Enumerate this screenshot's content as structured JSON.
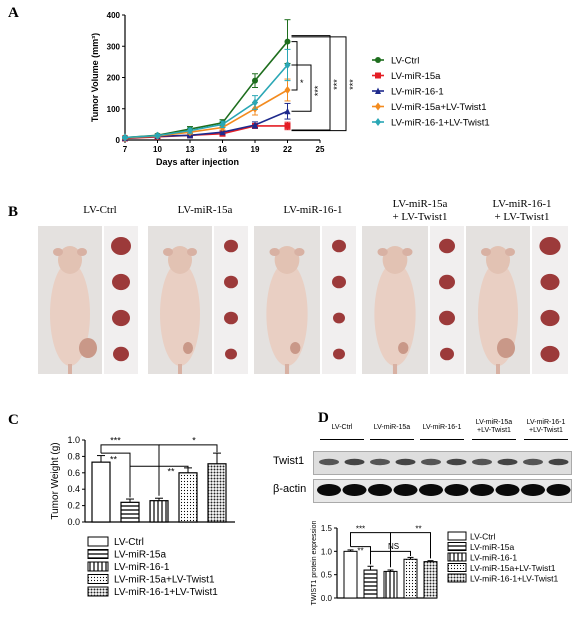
{
  "panels": {
    "a": "A",
    "b": "B",
    "c": "C",
    "d": "D"
  },
  "chart_a": {
    "type": "line",
    "xlabel": "Days after injection",
    "ylabel": "Tumor Volume (mm³)",
    "x_ticks": [
      7,
      10,
      13,
      16,
      19,
      22,
      25
    ],
    "y_ticks": [
      0,
      100,
      200,
      300,
      400
    ],
    "xlim": [
      7,
      25
    ],
    "ylim": [
      0,
      400
    ],
    "x": [
      7,
      10,
      13,
      16,
      19,
      22
    ],
    "series": [
      {
        "name": "LV-Ctrl",
        "color": "#1e6e1e",
        "marker": "circle",
        "values": [
          8,
          15,
          35,
          55,
          190,
          315
        ],
        "err": [
          3,
          4,
          8,
          10,
          22,
          70
        ]
      },
      {
        "name": "LV-miR-15a",
        "color": "#e41e25",
        "marker": "square",
        "values": [
          5,
          10,
          15,
          20,
          45,
          45
        ],
        "err": [
          2,
          3,
          5,
          5,
          8,
          12
        ]
      },
      {
        "name": "LV-miR-16-1",
        "color": "#1e2a8c",
        "marker": "triangle",
        "values": [
          6,
          12,
          15,
          25,
          48,
          92
        ],
        "err": [
          2,
          3,
          4,
          6,
          10,
          25
        ]
      },
      {
        "name": "LV-miR-15a+LV-Twist1",
        "color": "#f38b1f",
        "marker": "diamond",
        "values": [
          7,
          13,
          25,
          40,
          100,
          160
        ],
        "err": [
          3,
          4,
          6,
          8,
          20,
          35
        ]
      },
      {
        "name": "LV-miR-16-1+LV-Twist1",
        "color": "#2aa7b5",
        "marker": "diamond",
        "values": [
          8,
          14,
          30,
          50,
          120,
          240
        ],
        "err": [
          3,
          4,
          8,
          10,
          22,
          50
        ]
      }
    ],
    "sig": [
      "*",
      "***",
      "***",
      "***"
    ]
  },
  "photos": {
    "labels": [
      "LV-Ctrl",
      "LV-miR-15a",
      "LV-miR-16-1",
      "LV-miR-15a\n+ LV-Twist1",
      "LV-miR-16-1\n+ LV-Twist1"
    ]
  },
  "chart_c": {
    "type": "bar",
    "ylabel": "Tumor Weight (g)",
    "y_ticks": [
      0.0,
      0.2,
      0.4,
      0.6,
      0.8,
      1.0
    ],
    "ylim": [
      0,
      1.0
    ],
    "categories": [
      "LV-Ctrl",
      "LV-miR-15a",
      "LV-miR-16-1",
      "LV-miR-15a+LV-Twist1",
      "LV-miR-16-1+LV-Twist1"
    ],
    "values": [
      0.73,
      0.24,
      0.26,
      0.6,
      0.71
    ],
    "err": [
      0.08,
      0.04,
      0.03,
      0.06,
      0.13
    ],
    "sig": [
      "***",
      "**",
      "**",
      "*"
    ]
  },
  "blot": {
    "lanes": [
      "LV-Ctrl",
      "LV-miR-15a",
      "LV-miR-16-1",
      "LV-miR-15a\n+LV-Twist1",
      "LV-miR-16-1\n+LV-Twist1"
    ],
    "rows": [
      "Twist1",
      "β-actin"
    ]
  },
  "chart_d": {
    "type": "bar",
    "ylabel": "TWIST1 protein expression",
    "y_ticks": [
      0.0,
      0.5,
      1.0,
      1.5
    ],
    "ylim": [
      0,
      1.5
    ],
    "categories": [
      "LV-Ctrl",
      "LV-miR-15a",
      "LV-miR-16-1",
      "LV-miR-15a+LV-Twist1",
      "LV-miR-16-1+LV-Twist1"
    ],
    "values": [
      1.0,
      0.6,
      0.57,
      0.83,
      0.78
    ],
    "err": [
      0.03,
      0.08,
      0.03,
      0.04,
      0.02
    ],
    "sig": [
      "***",
      "**",
      "NS",
      "**"
    ]
  }
}
